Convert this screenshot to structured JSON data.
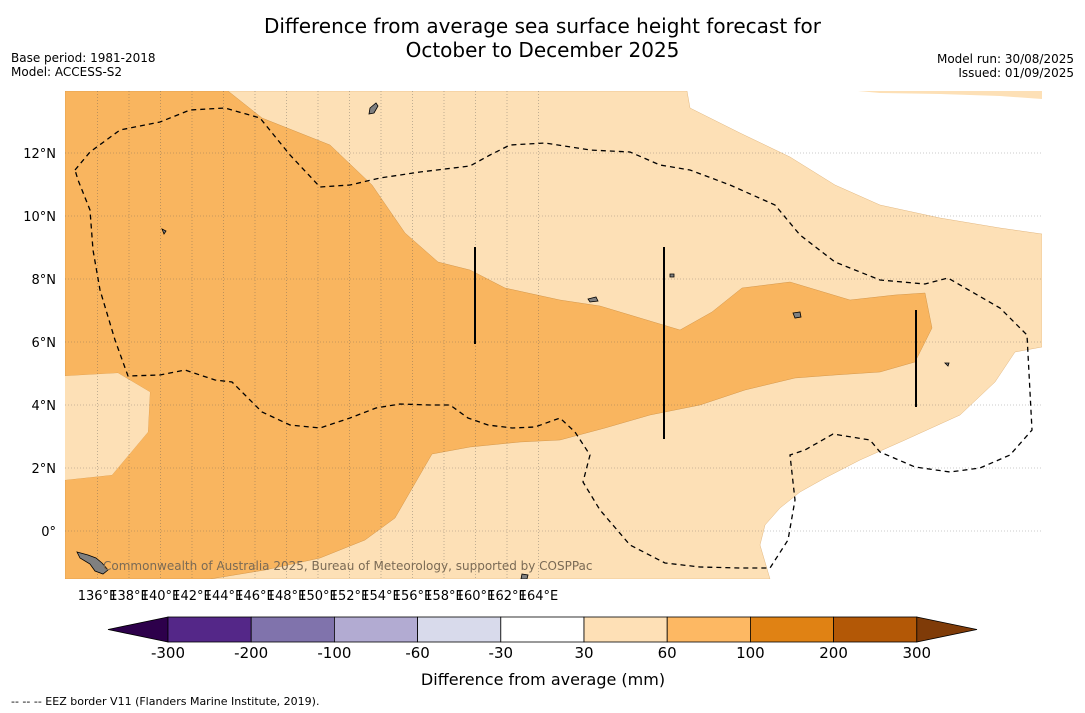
{
  "header": {
    "title_line1": "Difference from average sea surface height forecast for",
    "title_line2": "October to December 2025",
    "base_period": "Base period: 1981-2018",
    "model": "Model: ACCESS-S2",
    "model_run": "Model run: 30/08/2025",
    "issued": "Issued: 01/09/2025"
  },
  "map": {
    "lon_labels": [
      "136°E",
      "138°E",
      "140°E",
      "142°E",
      "144°E",
      "146°E",
      "148°E",
      "150°E",
      "152°E",
      "154°E",
      "156°E",
      "158°E",
      "160°E",
      "162°E",
      "164°E"
    ],
    "lat_labels": [
      "12°N",
      "10°N",
      "8°N",
      "6°N",
      "4°N",
      "2°N",
      "0°"
    ],
    "credit": "Commonwealth of Australia 2025, Bureau of Meteorology, supported by COSPPac",
    "colors": {
      "band_30_60": "#fde0b6",
      "band_60_100": "#f9b55f",
      "land": "#808080"
    }
  },
  "legend": {
    "title": "Difference from average (mm)",
    "ticks": [
      "-300",
      "-200",
      "-100",
      "-60",
      "-30",
      "30",
      "60",
      "100",
      "200",
      "300"
    ],
    "colors": [
      "#2d004b",
      "#542788",
      "#8073ac",
      "#b2abd2",
      "#d8daeb",
      "#ffffff",
      "#fee0b6",
      "#fdb863",
      "#e08214",
      "#b35806",
      "#7f3b08"
    ]
  },
  "footer": {
    "note": "--  --  -- EEZ border V11 (Flanders Marine Institute, 2019)."
  }
}
